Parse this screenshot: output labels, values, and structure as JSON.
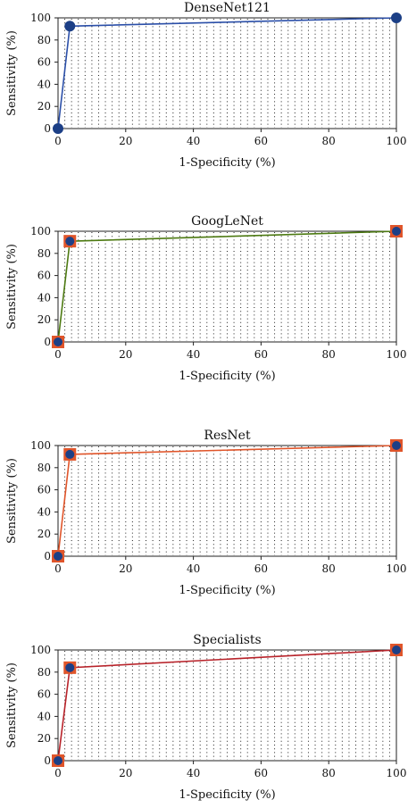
{
  "chart_data": [
    {
      "type": "line",
      "title": "DenseNet121",
      "xlabel": "1-Specificity (%)",
      "ylabel": "Sensitivity (%)",
      "xlim": [
        0,
        100
      ],
      "ylim": [
        0,
        100
      ],
      "xticks": [
        0,
        20,
        40,
        60,
        80,
        100
      ],
      "yticks": [
        0,
        20,
        40,
        60,
        80,
        100
      ],
      "grid": "dotted",
      "line_color": "#2b4fa8",
      "marker": "circle",
      "marker_fill": "#1c3f86",
      "marker_edge": "#1c3f86",
      "x": [
        0,
        3.5,
        100
      ],
      "y": [
        0,
        92.5,
        100
      ]
    },
    {
      "type": "line",
      "title": "GoogLeNet",
      "xlabel": "1-Specificity (%)",
      "ylabel": "Sensitivity (%)",
      "xlim": [
        0,
        100
      ],
      "ylim": [
        0,
        100
      ],
      "xticks": [
        0,
        20,
        40,
        60,
        80,
        100
      ],
      "yticks": [
        0,
        20,
        40,
        60,
        80,
        100
      ],
      "grid": "dotted",
      "line_color": "#4d7a12",
      "marker": "circle-in-square",
      "marker_fill": "#1c3f86",
      "marker_edge": "#e0552a",
      "x": [
        0,
        3.5,
        100
      ],
      "y": [
        0,
        91,
        100
      ]
    },
    {
      "type": "line",
      "title": "ResNet",
      "xlabel": "1-Specificity (%)",
      "ylabel": "Sensitivity (%)",
      "xlim": [
        0,
        100
      ],
      "ylim": [
        0,
        100
      ],
      "xticks": [
        0,
        20,
        40,
        60,
        80,
        100
      ],
      "yticks": [
        0,
        20,
        40,
        60,
        80,
        100
      ],
      "grid": "dotted",
      "line_color": "#e0552a",
      "marker": "circle-in-square",
      "marker_fill": "#1c3f86",
      "marker_edge": "#e0552a",
      "x": [
        0,
        3.5,
        100
      ],
      "y": [
        0,
        92,
        100
      ]
    },
    {
      "type": "line",
      "title": "Specialists",
      "xlabel": "1-Specificity (%)",
      "ylabel": "Sensitivity (%)",
      "xlim": [
        0,
        100
      ],
      "ylim": [
        0,
        100
      ],
      "xticks": [
        0,
        20,
        40,
        60,
        80,
        100
      ],
      "yticks": [
        0,
        20,
        40,
        60,
        80,
        100
      ],
      "grid": "dotted",
      "line_color": "#b8232a",
      "marker": "circle-in-square",
      "marker_fill": "#1c3f86",
      "marker_edge": "#e0552a",
      "x": [
        0,
        3.5,
        100
      ],
      "y": [
        0,
        84,
        100
      ]
    }
  ]
}
